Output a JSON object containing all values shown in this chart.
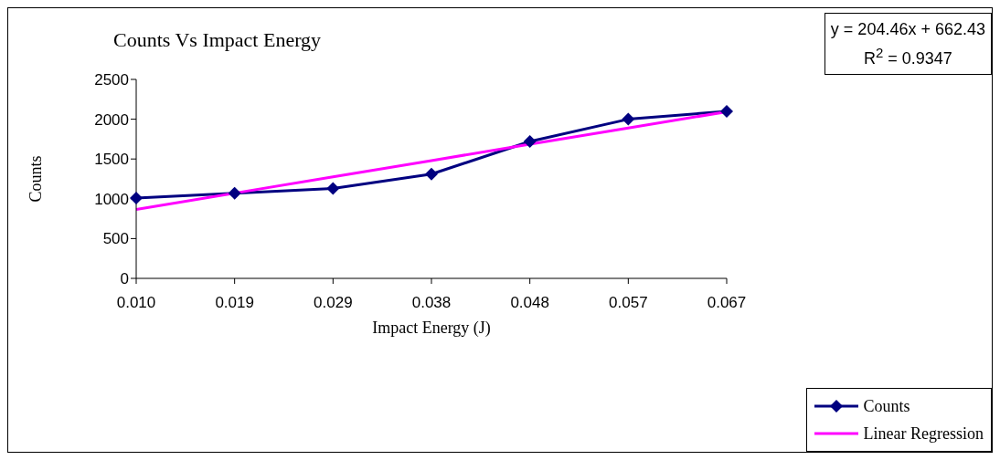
{
  "chart_data": {
    "type": "line",
    "title": "Counts Vs Impact Energy",
    "xlabel": "Impact Energy (J)",
    "ylabel": "Counts",
    "categories": [
      "0.010",
      "0.019",
      "0.029",
      "0.038",
      "0.048",
      "0.057",
      "0.067"
    ],
    "series": [
      {
        "name": "Counts",
        "color": "#000080",
        "marker": "diamond",
        "values": [
          1010,
          1070,
          1130,
          1310,
          1720,
          2000,
          2100
        ]
      },
      {
        "name": "Linear Regression",
        "color": "#ff00ff",
        "marker": "none",
        "values": [
          867,
          1071,
          1276,
          1480,
          1685,
          1889,
          2094
        ]
      }
    ],
    "ylim": [
      0,
      2500
    ],
    "yticks": [
      0,
      500,
      1000,
      1500,
      2000,
      2500
    ],
    "grid": false,
    "legend": "bottom right",
    "annotations": [
      "y = 204.46x + 662.43",
      "R$^{2}$ = 0.9347"
    ]
  }
}
